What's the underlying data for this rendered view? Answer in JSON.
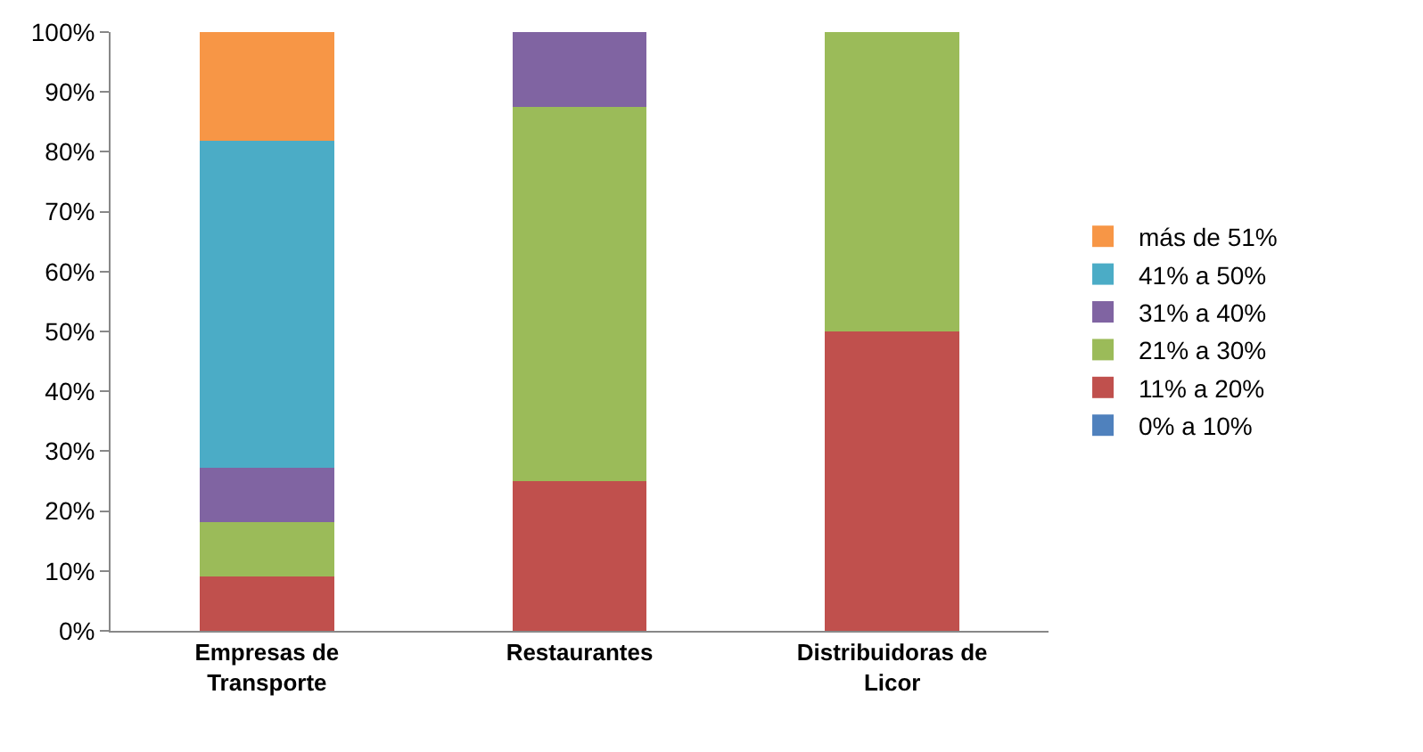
{
  "chart_data": {
    "type": "bar",
    "stacked": true,
    "categories": [
      "Empresas de Transporte",
      "Restaurantes",
      "Distribuidoras de Licor"
    ],
    "series": [
      {
        "name": "0% a 10%",
        "color": "#4f81bd",
        "values": [
          0,
          0,
          0
        ]
      },
      {
        "name": "11% a 20%",
        "color": "#c0504d",
        "values": [
          9.1,
          25,
          50
        ]
      },
      {
        "name": "21% a 30%",
        "color": "#9bbb59",
        "values": [
          9.1,
          62.5,
          50
        ]
      },
      {
        "name": "31% a 40%",
        "color": "#8064a2",
        "values": [
          9.1,
          12.5,
          0
        ]
      },
      {
        "name": "41% a 50%",
        "color": "#4bacc6",
        "values": [
          54.5,
          0,
          0
        ]
      },
      {
        "name": "más de 51%",
        "color": "#f79646",
        "values": [
          18.2,
          0,
          0
        ]
      }
    ],
    "ylim": [
      0,
      100
    ],
    "yticks": [
      {
        "value": 0,
        "label": "0%"
      },
      {
        "value": 10,
        "label": "10%"
      },
      {
        "value": 20,
        "label": "20%"
      },
      {
        "value": 30,
        "label": "30%"
      },
      {
        "value": 40,
        "label": "40%"
      },
      {
        "value": 50,
        "label": "50%"
      },
      {
        "value": 60,
        "label": "60%"
      },
      {
        "value": 70,
        "label": "70%"
      },
      {
        "value": 80,
        "label": "80%"
      },
      {
        "value": 90,
        "label": "90%"
      },
      {
        "value": 100,
        "label": "100%"
      }
    ],
    "legend": "right"
  }
}
